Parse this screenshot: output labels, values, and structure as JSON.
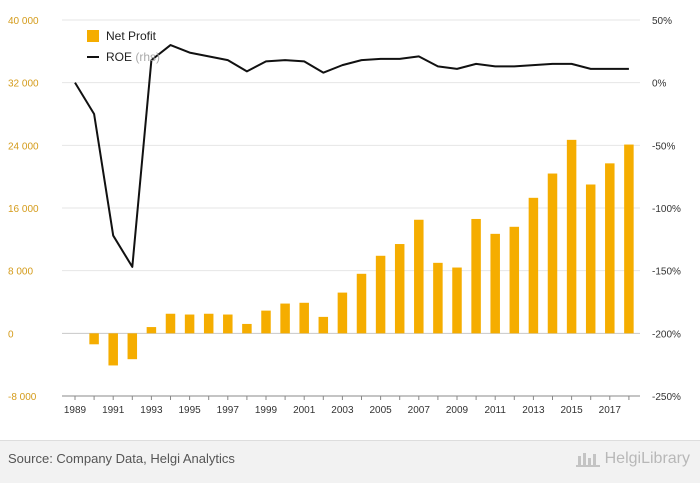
{
  "chart_data": {
    "type": "bar+line",
    "title": "",
    "x": [
      1989,
      1990,
      1991,
      1992,
      1993,
      1994,
      1995,
      1996,
      1997,
      1998,
      1999,
      2000,
      2001,
      2002,
      2003,
      2004,
      2005,
      2006,
      2007,
      2008,
      2009,
      2010,
      2011,
      2012,
      2013,
      2014,
      2015,
      2016,
      2017,
      2018
    ],
    "x_tick_labels": [
      "1989",
      "1991",
      "1993",
      "1995",
      "1997",
      "1999",
      "2001",
      "2003",
      "2005",
      "2007",
      "2009",
      "2011",
      "2013",
      "2015",
      "2017"
    ],
    "series": [
      {
        "name": "Net Profit",
        "type": "bar",
        "axis": "left",
        "color": "#f5ad00",
        "values": [
          null,
          -1400,
          -4100,
          -3300,
          800,
          2500,
          2400,
          2500,
          2400,
          1200,
          2900,
          3800,
          3900,
          2100,
          5200,
          7600,
          9900,
          11400,
          14500,
          9000,
          8400,
          14600,
          12700,
          13600,
          17300,
          20400,
          24700,
          19000,
          21700,
          24100
        ]
      },
      {
        "name": "ROE",
        "label_suffix": "(rhs)",
        "type": "line",
        "axis": "right",
        "color": "#111111",
        "values": [
          0,
          -25,
          -122,
          -147,
          18,
          30,
          24,
          21,
          18,
          9,
          17,
          18,
          17,
          8,
          14,
          18,
          19,
          19,
          21,
          13,
          11,
          15,
          13,
          13,
          14,
          15,
          15,
          11,
          11,
          11
        ]
      }
    ],
    "left_axis": {
      "min": -8000,
      "max": 40000,
      "ticks": [
        -8000,
        0,
        8000,
        16000,
        24000,
        32000,
        40000
      ],
      "tick_labels": [
        "-8 000",
        "0",
        "8 000",
        "16 000",
        "24 000",
        "32 000",
        "40 000"
      ],
      "color": "#d49b1a"
    },
    "right_axis": {
      "min": -250,
      "max": 50,
      "ticks": [
        -250,
        -200,
        -150,
        -100,
        -50,
        0,
        50
      ],
      "tick_labels": [
        "-250%",
        "-200%",
        "-150%",
        "-100%",
        "-50%",
        "0%",
        "50%"
      ]
    },
    "grid": true,
    "legend_position": "top-left"
  },
  "footer": {
    "source": "Source: Company Data, Helgi Analytics",
    "brand": "HelgiLibrary"
  }
}
